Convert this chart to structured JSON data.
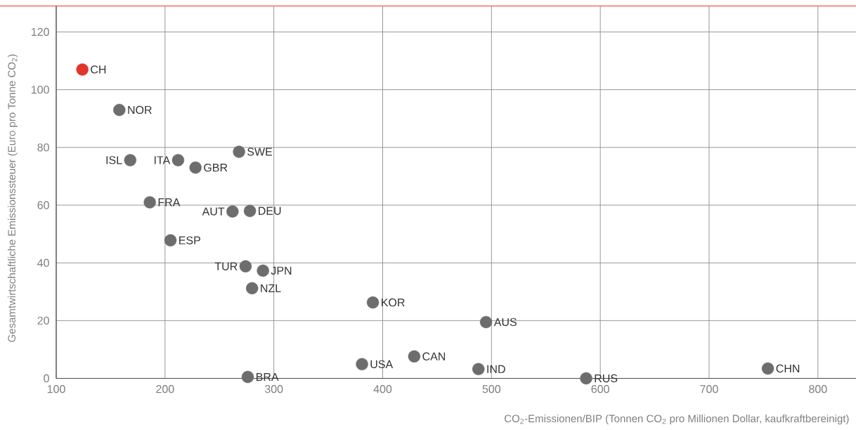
{
  "chart_data": {
    "type": "scatter",
    "xlabel": "CO$_{2}$-Emissionen/BIP (Tonnen CO$_{2}$ pro Millionen Dollar, kaufkraftbereinigt)",
    "ylabel": "Gesamtwirtschaftliche Emissionssteuer (Euro pro Tonne CO$_{2}$)",
    "x": [
      124,
      158,
      168,
      212,
      228,
      268,
      186,
      262,
      278,
      205,
      274,
      290,
      280,
      391,
      495,
      429,
      381,
      488,
      276,
      587,
      754
    ],
    "values": [
      107,
      93,
      75.6,
      75.6,
      73,
      78.5,
      61,
      57.8,
      58,
      47.8,
      38.8,
      37.3,
      31.2,
      26.3,
      19.5,
      7.6,
      4.9,
      3.2,
      0.5,
      0,
      3.4
    ],
    "colors": [
      "#e3342a",
      "#6d6d6d",
      "#6d6d6d",
      "#6d6d6d",
      "#6d6d6d",
      "#6d6d6d",
      "#6d6d6d",
      "#6d6d6d",
      "#6d6d6d",
      "#6d6d6d",
      "#6d6d6d",
      "#6d6d6d",
      "#6d6d6d",
      "#6d6d6d",
      "#6d6d6d",
      "#6d6d6d",
      "#6d6d6d",
      "#6d6d6d",
      "#6d6d6d",
      "#6d6d6d",
      "#6d6d6d"
    ],
    "marker": "circle",
    "xlim": [
      100,
      835
    ],
    "ylim": [
      0,
      129
    ],
    "xticks": [
      100,
      200,
      300,
      400,
      500,
      600,
      700,
      800
    ],
    "yticks": [
      0,
      20,
      40,
      60,
      80,
      100,
      120
    ],
    "grid": true,
    "annotations": [
      {
        "text": "CH",
        "x": 124,
        "y": 107
      },
      {
        "text": "NOR",
        "x": 158,
        "y": 93
      },
      {
        "text": "ISL",
        "x": 168,
        "y": 75.6
      },
      {
        "text": "ITA",
        "x": 212,
        "y": 75.6
      },
      {
        "text": "GBR",
        "x": 228,
        "y": 73
      },
      {
        "text": "SWE",
        "x": 268,
        "y": 78.5
      },
      {
        "text": "FRA",
        "x": 186,
        "y": 61
      },
      {
        "text": "AUT",
        "x": 262,
        "y": 57.8
      },
      {
        "text": "DEU",
        "x": 278,
        "y": 58
      },
      {
        "text": "ESP",
        "x": 205,
        "y": 47.8
      },
      {
        "text": "TUR",
        "x": 274,
        "y": 38.8
      },
      {
        "text": "JPN",
        "x": 290,
        "y": 37.3
      },
      {
        "text": "NZL",
        "x": 280,
        "y": 31.2
      },
      {
        "text": "KOR",
        "x": 391,
        "y": 26.3
      },
      {
        "text": "AUS",
        "x": 495,
        "y": 19.5
      },
      {
        "text": "CAN",
        "x": 429,
        "y": 7.6
      },
      {
        "text": "USA",
        "x": 381,
        "y": 4.9
      },
      {
        "text": "IND",
        "x": 488,
        "y": 3.2
      },
      {
        "text": "BRA",
        "x": 276,
        "y": 0.5
      },
      {
        "text": "RUS",
        "x": 587,
        "y": 0
      },
      {
        "text": "CHN",
        "x": 754,
        "y": 3.4
      }
    ]
  }
}
